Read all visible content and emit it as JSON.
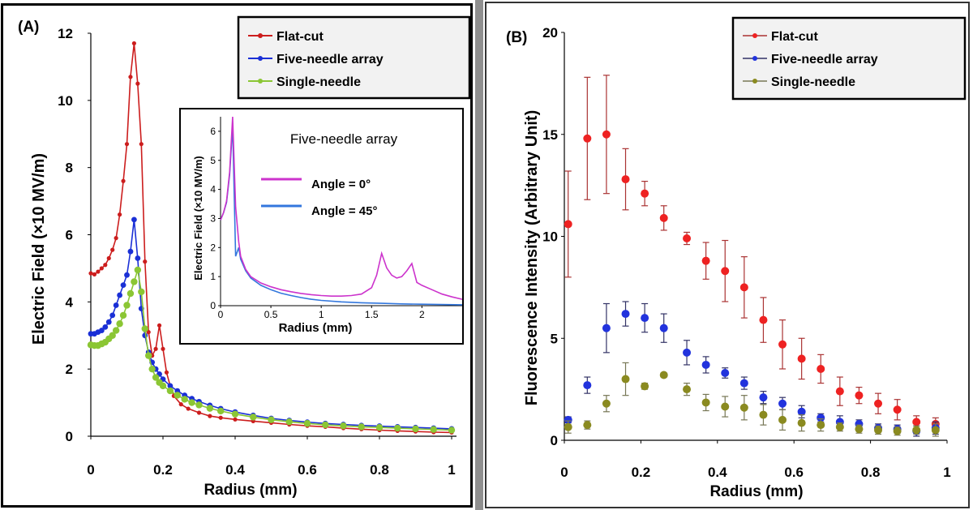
{
  "colors": {
    "flat_cut_a": "#cc1d1d",
    "five_needle_a": "#1a2fd6",
    "single_needle_a": "#8bc634",
    "flat_cut_b": "#ee2222",
    "five_needle_b": "#2233dd",
    "single_needle_b": "#8a8a20",
    "angle0": "#cc33cc",
    "angle45": "#3377dd"
  },
  "chart_data": [
    {
      "panel": "(A)",
      "type": "line",
      "xlabel": "Radius (mm)",
      "ylabel": "Electric Field (×10 MV/m)",
      "xlim": [
        0,
        1
      ],
      "ylim": [
        0,
        12
      ],
      "xticks": [
        "0",
        "0.2",
        "0.4",
        "0.6",
        "0.8",
        "1"
      ],
      "yticks": [
        "0",
        "2",
        "4",
        "6",
        "8",
        "10",
        "12"
      ],
      "legend": [
        "Flat-cut",
        "Five-needle array",
        "Single-needle"
      ],
      "series": [
        {
          "name": "Flat-cut",
          "x": [
            0,
            0.01,
            0.02,
            0.03,
            0.04,
            0.05,
            0.06,
            0.07,
            0.08,
            0.09,
            0.1,
            0.11,
            0.12,
            0.13,
            0.14,
            0.15,
            0.16,
            0.17,
            0.18,
            0.19,
            0.2,
            0.21,
            0.22,
            0.23,
            0.25,
            0.27,
            0.3,
            0.33,
            0.36,
            0.4,
            0.45,
            0.5,
            0.55,
            0.6,
            0.65,
            0.7,
            0.75,
            0.8,
            0.85,
            0.9,
            0.95,
            1.0
          ],
          "values": [
            4.85,
            4.82,
            4.9,
            5.0,
            5.1,
            5.3,
            5.55,
            5.9,
            6.6,
            7.6,
            8.7,
            10.7,
            11.7,
            10.5,
            8.7,
            5.2,
            3.1,
            2.4,
            2.6,
            3.3,
            2.6,
            1.9,
            1.5,
            1.2,
            0.95,
            0.82,
            0.7,
            0.6,
            0.55,
            0.5,
            0.45,
            0.4,
            0.35,
            0.31,
            0.28,
            0.24,
            0.21,
            0.18,
            0.16,
            0.14,
            0.12,
            0.11
          ]
        },
        {
          "name": "Five-needle array",
          "x": [
            0,
            0.01,
            0.02,
            0.03,
            0.04,
            0.05,
            0.06,
            0.07,
            0.08,
            0.09,
            0.1,
            0.11,
            0.12,
            0.13,
            0.14,
            0.15,
            0.16,
            0.17,
            0.18,
            0.19,
            0.2,
            0.22,
            0.24,
            0.26,
            0.28,
            0.3,
            0.33,
            0.36,
            0.4,
            0.45,
            0.5,
            0.55,
            0.6,
            0.65,
            0.7,
            0.75,
            0.8,
            0.85,
            0.9,
            0.95,
            1.0
          ],
          "values": [
            3.05,
            3.05,
            3.1,
            3.15,
            3.25,
            3.4,
            3.6,
            3.9,
            4.2,
            4.5,
            4.8,
            5.5,
            6.45,
            5.3,
            3.8,
            3.0,
            2.5,
            2.2,
            2.0,
            1.85,
            1.7,
            1.5,
            1.35,
            1.22,
            1.12,
            1.03,
            0.92,
            0.82,
            0.72,
            0.62,
            0.53,
            0.47,
            0.42,
            0.38,
            0.35,
            0.32,
            0.3,
            0.28,
            0.26,
            0.24,
            0.22
          ]
        },
        {
          "name": "Single-needle",
          "x": [
            0,
            0.01,
            0.02,
            0.03,
            0.04,
            0.05,
            0.06,
            0.07,
            0.08,
            0.09,
            0.1,
            0.11,
            0.12,
            0.13,
            0.14,
            0.15,
            0.16,
            0.17,
            0.18,
            0.19,
            0.2,
            0.22,
            0.24,
            0.26,
            0.28,
            0.3,
            0.33,
            0.36,
            0.4,
            0.45,
            0.5,
            0.55,
            0.6,
            0.65,
            0.7,
            0.75,
            0.8,
            0.85,
            0.9,
            0.95,
            1.0
          ],
          "values": [
            2.72,
            2.7,
            2.7,
            2.75,
            2.8,
            2.9,
            3.0,
            3.15,
            3.35,
            3.6,
            3.9,
            4.25,
            4.6,
            4.95,
            4.3,
            3.2,
            2.4,
            2.0,
            1.75,
            1.6,
            1.5,
            1.35,
            1.22,
            1.1,
            1.0,
            0.93,
            0.83,
            0.75,
            0.66,
            0.57,
            0.49,
            0.43,
            0.38,
            0.34,
            0.31,
            0.28,
            0.26,
            0.24,
            0.22,
            0.2,
            0.18
          ]
        }
      ],
      "inset": {
        "title": "Five-needle array",
        "type": "line",
        "xlabel": "Radius (mm)",
        "ylabel": "Electric Field (×10 MV/m)",
        "xlim": [
          0,
          2.4
        ],
        "ylim": [
          0,
          6.5
        ],
        "xticks": [
          "0",
          "0.5",
          "1",
          "1.5",
          "2"
        ],
        "yticks": [
          "0",
          "1",
          "2",
          "3",
          "4",
          "5",
          "6"
        ],
        "legend": [
          "Angle = 0°",
          "Angle = 45°"
        ],
        "series": [
          {
            "name": "Angle = 0°",
            "x": [
              0,
              0.03,
              0.06,
              0.09,
              0.12,
              0.15,
              0.18,
              0.2,
              0.25,
              0.3,
              0.4,
              0.5,
              0.6,
              0.7,
              0.8,
              0.9,
              1.0,
              1.1,
              1.2,
              1.3,
              1.4,
              1.5,
              1.55,
              1.6,
              1.65,
              1.7,
              1.75,
              1.8,
              1.85,
              1.9,
              1.95,
              2.0,
              2.1,
              2.2,
              2.3,
              2.4
            ],
            "values": [
              2.95,
              3.2,
              3.6,
              4.6,
              6.5,
              3.4,
              2.2,
              1.7,
              1.25,
              1.0,
              0.78,
              0.65,
              0.55,
              0.48,
              0.42,
              0.38,
              0.35,
              0.33,
              0.33,
              0.35,
              0.4,
              0.62,
              1.05,
              1.8,
              1.3,
              1.05,
              0.95,
              1.0,
              1.2,
              1.45,
              0.8,
              0.7,
              0.55,
              0.4,
              0.3,
              0.22
            ]
          },
          {
            "name": "Angle = 45°",
            "x": [
              0,
              0.03,
              0.06,
              0.09,
              0.12,
              0.15,
              0.18,
              0.2,
              0.25,
              0.3,
              0.4,
              0.5,
              0.6,
              0.7,
              0.8,
              0.9,
              1.0,
              1.2,
              1.4,
              1.6,
              1.8,
              2.0,
              2.2,
              2.4
            ],
            "values": [
              2.95,
              3.2,
              3.55,
              4.5,
              6.2,
              1.7,
              2.0,
              1.6,
              1.2,
              0.95,
              0.7,
              0.55,
              0.43,
              0.35,
              0.28,
              0.22,
              0.18,
              0.13,
              0.1,
              0.08,
              0.06,
              0.05,
              0.04,
              0.03
            ]
          }
        ]
      }
    },
    {
      "panel": "(B)",
      "type": "scatter",
      "xlabel": "Radius (mm)",
      "ylabel": "Fluorescence Intensity (Arbitrary Unit)",
      "xlim": [
        0,
        1
      ],
      "ylim": [
        0,
        20
      ],
      "xticks": [
        "0",
        "0.2",
        "0.4",
        "0.6",
        "0.8",
        "1"
      ],
      "yticks": [
        "0",
        "5",
        "10",
        "15",
        "20"
      ],
      "legend": [
        "Flat-cut",
        "Five-needle array",
        "Single-needle"
      ],
      "series": [
        {
          "name": "Flat-cut",
          "x": [
            0.01,
            0.06,
            0.11,
            0.16,
            0.21,
            0.26,
            0.32,
            0.37,
            0.42,
            0.47,
            0.52,
            0.57,
            0.62,
            0.67,
            0.72,
            0.77,
            0.82,
            0.87,
            0.92,
            0.97
          ],
          "values": [
            10.6,
            14.8,
            15.0,
            12.8,
            12.1,
            10.9,
            9.9,
            8.8,
            8.3,
            7.5,
            5.9,
            4.7,
            4.0,
            3.5,
            2.4,
            2.2,
            1.8,
            1.5,
            0.9,
            0.8
          ],
          "errors": [
            2.6,
            3.0,
            2.9,
            1.5,
            0.6,
            0.6,
            0.3,
            0.9,
            1.5,
            1.5,
            1.1,
            1.2,
            1.0,
            0.7,
            0.7,
            0.4,
            0.5,
            0.5,
            0.3,
            0.3
          ]
        },
        {
          "name": "Five-needle array",
          "x": [
            0.01,
            0.06,
            0.11,
            0.16,
            0.21,
            0.26,
            0.32,
            0.37,
            0.42,
            0.47,
            0.52,
            0.57,
            0.62,
            0.67,
            0.72,
            0.77,
            0.82,
            0.87,
            0.92,
            0.97
          ],
          "values": [
            1.0,
            2.7,
            5.5,
            6.2,
            6.0,
            5.5,
            4.3,
            3.7,
            3.3,
            2.8,
            2.1,
            1.8,
            1.4,
            1.1,
            0.9,
            0.8,
            0.6,
            0.55,
            0.45,
            0.6
          ],
          "errors": [
            0.15,
            0.4,
            1.2,
            0.6,
            0.7,
            0.7,
            0.6,
            0.4,
            0.25,
            0.3,
            0.3,
            0.3,
            0.3,
            0.2,
            0.3,
            0.2,
            0.2,
            0.2,
            0.25,
            0.3
          ]
        },
        {
          "name": "Single-needle",
          "x": [
            0.01,
            0.06,
            0.11,
            0.16,
            0.21,
            0.26,
            0.32,
            0.37,
            0.42,
            0.47,
            0.52,
            0.57,
            0.62,
            0.67,
            0.72,
            0.77,
            0.82,
            0.87,
            0.92,
            0.97
          ],
          "values": [
            0.65,
            0.75,
            1.8,
            3.0,
            2.65,
            3.2,
            2.5,
            1.85,
            1.65,
            1.6,
            1.25,
            1.0,
            0.85,
            0.75,
            0.65,
            0.55,
            0.5,
            0.45,
            0.5,
            0.5
          ],
          "errors": [
            0.3,
            0.2,
            0.4,
            0.8,
            0.15,
            0.1,
            0.3,
            0.4,
            0.5,
            0.6,
            0.5,
            0.5,
            0.4,
            0.3,
            0.2,
            0.2,
            0.2,
            0.2,
            0.2,
            0.3
          ]
        }
      ]
    }
  ]
}
